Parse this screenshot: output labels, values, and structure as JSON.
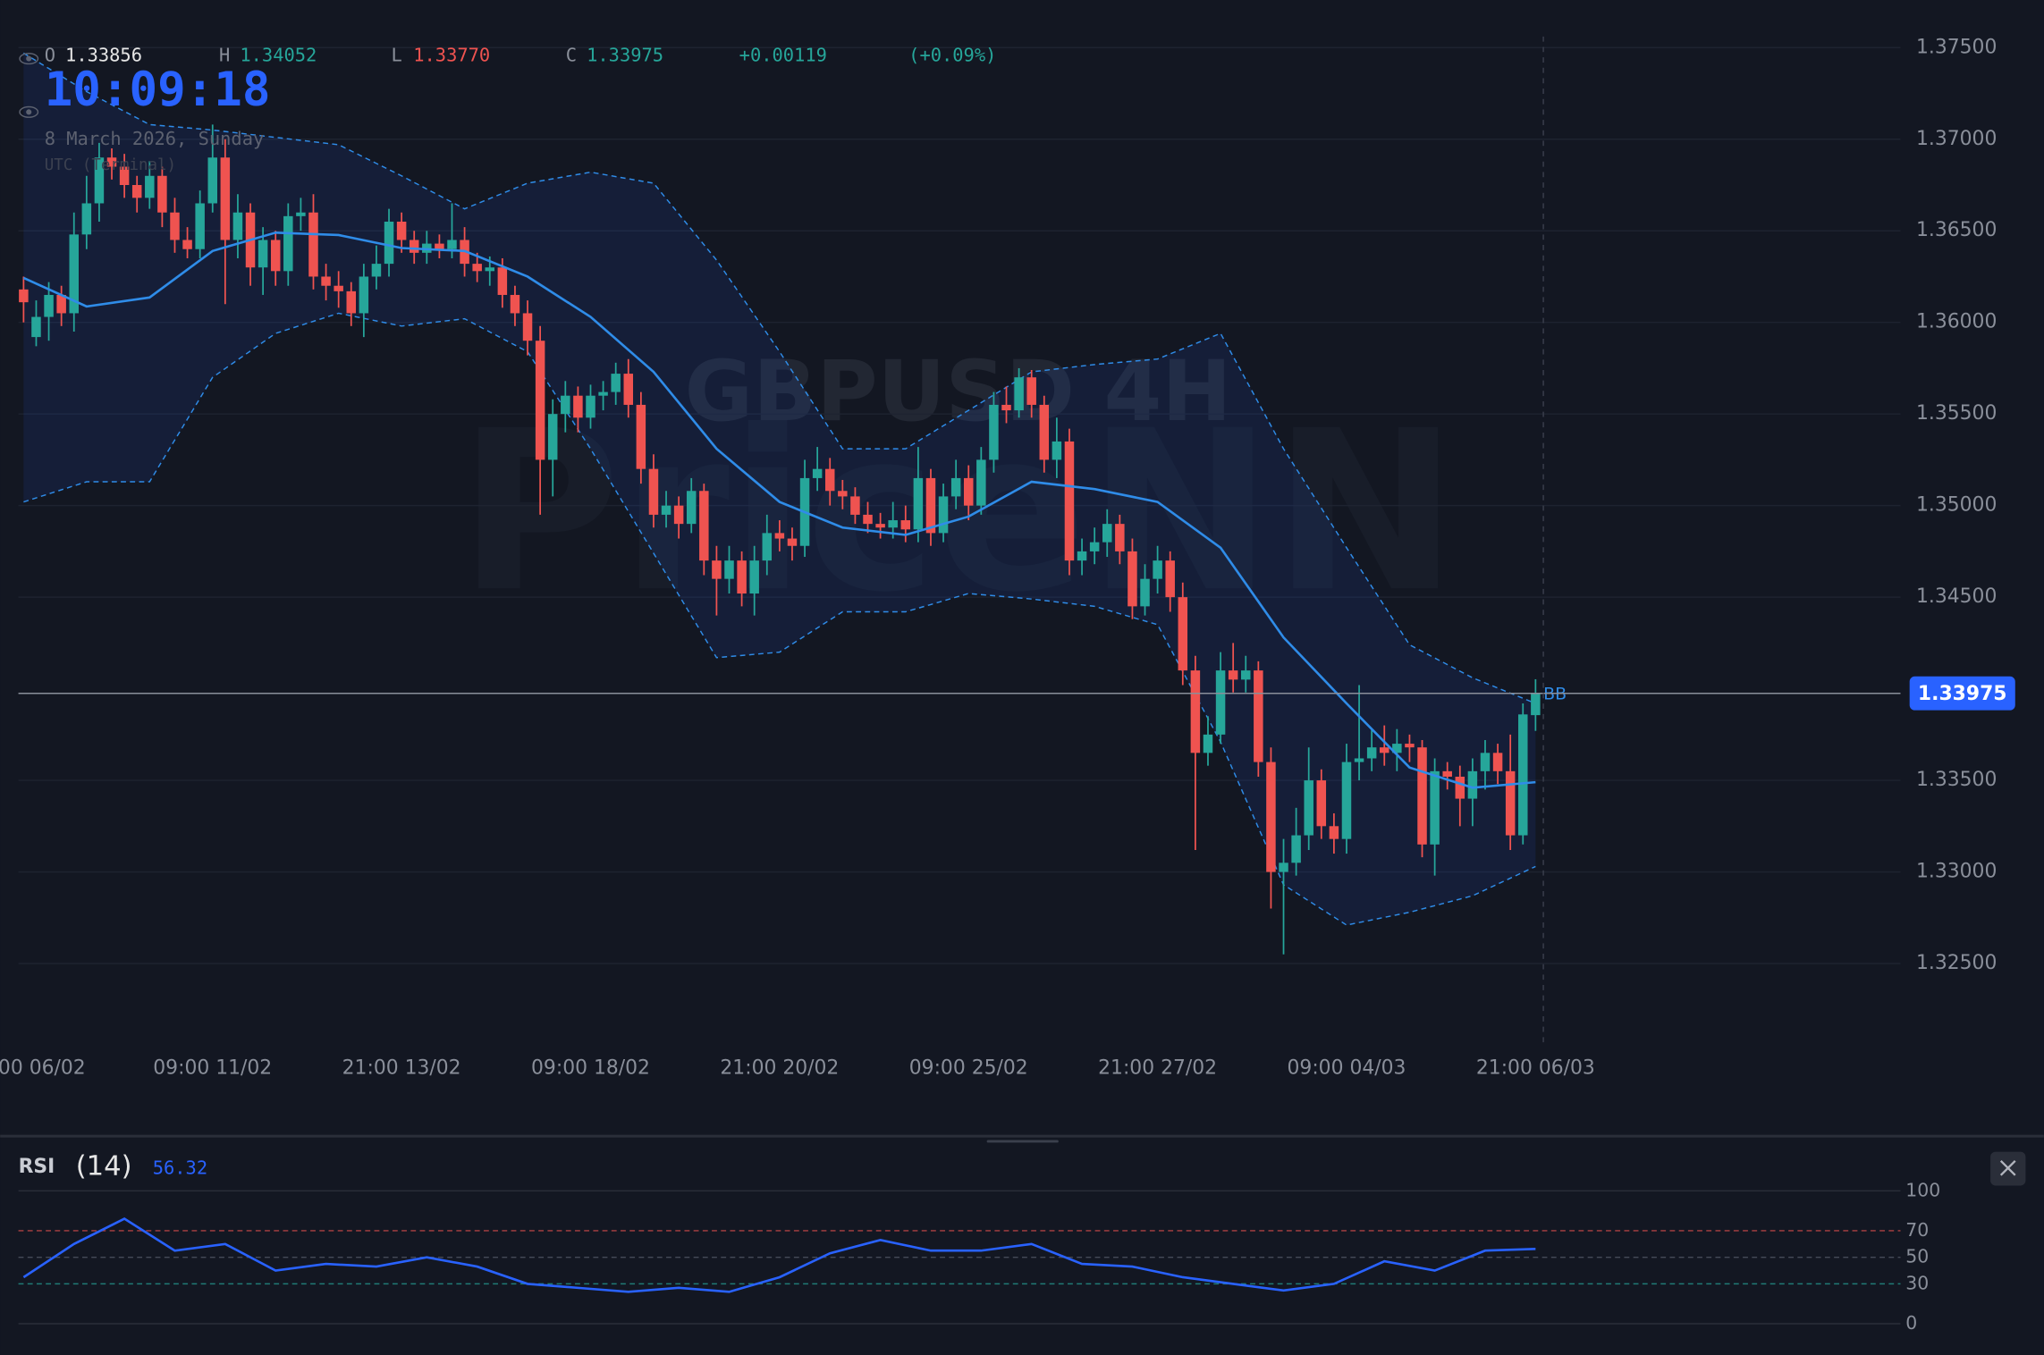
{
  "header": {
    "open_label": "O",
    "open": "1.33856",
    "high_label": "H",
    "high": "1.34052",
    "low_label": "L",
    "low": "1.33770",
    "close_label": "C",
    "change": "+0.00119",
    "change_pct": "(+0.09%)"
  },
  "clock": {
    "time": "10:09:18",
    "date": "8 March 2026, Sunday",
    "timezone": "UTC (Terminal)"
  },
  "watermark": {
    "symbol": "GBPUSD 4H",
    "brand": "PriceNN"
  },
  "chart_data": [
    {
      "type": "candlestick",
      "up_color": "#26a69a",
      "down_color": "#ef5350",
      "xlim": [
        -1.86,
        149.17
      ],
      "xticks": [
        {
          "value": 0,
          "label": "00 06/02"
        },
        {
          "value": 15,
          "label": "09:00 11/02"
        },
        {
          "value": 30,
          "label": "21:00 13/02"
        },
        {
          "value": 45,
          "label": "09:00 18/02"
        },
        {
          "value": 60,
          "label": "21:00 20/02"
        },
        {
          "value": 75,
          "label": "09:00 25/02"
        },
        {
          "value": 90,
          "label": "21:00 27/02"
        },
        {
          "value": 105,
          "label": "09:00 04/03"
        },
        {
          "value": 120,
          "label": "21:00 06/03"
        }
      ],
      "ylim": [
        1.3207,
        1.3776
      ],
      "yticks": [
        {
          "value": 1.375,
          "label": "1.37500"
        },
        {
          "value": 1.37,
          "label": "1.37000"
        },
        {
          "value": 1.365,
          "label": "1.36500"
        },
        {
          "value": 1.36,
          "label": "1.36000"
        },
        {
          "value": 1.355,
          "label": "1.35500"
        },
        {
          "value": 1.35,
          "label": "1.35000"
        },
        {
          "value": 1.345,
          "label": "1.34500"
        },
        {
          "value": 1.335,
          "label": "1.33500"
        },
        {
          "value": 1.33,
          "label": "1.33000"
        },
        {
          "value": 1.325,
          "label": "1.32500"
        }
      ],
      "grid": true,
      "last_price": {
        "value": 1.33975,
        "label": "1.33975"
      },
      "ohlc": [
        [
          1.3618,
          1.3625,
          1.36,
          1.3611
        ],
        [
          1.3592,
          1.3612,
          1.3587,
          1.3603
        ],
        [
          1.3603,
          1.3622,
          1.359,
          1.3615
        ],
        [
          1.3615,
          1.362,
          1.3598,
          1.3605
        ],
        [
          1.3605,
          1.366,
          1.3595,
          1.3648
        ],
        [
          1.3648,
          1.368,
          1.364,
          1.3665
        ],
        [
          1.3665,
          1.3698,
          1.3655,
          1.369
        ],
        [
          1.369,
          1.3695,
          1.3678,
          1.3685
        ],
        [
          1.3685,
          1.3692,
          1.3668,
          1.3675
        ],
        [
          1.3675,
          1.368,
          1.366,
          1.3668
        ],
        [
          1.3668,
          1.3688,
          1.3662,
          1.368
        ],
        [
          1.368,
          1.3685,
          1.3652,
          1.366
        ],
        [
          1.366,
          1.3668,
          1.3638,
          1.3645
        ],
        [
          1.3645,
          1.3652,
          1.3635,
          1.364
        ],
        [
          1.364,
          1.3672,
          1.3635,
          1.3665
        ],
        [
          1.3665,
          1.3708,
          1.366,
          1.369
        ],
        [
          1.369,
          1.37,
          1.361,
          1.3645
        ],
        [
          1.3645,
          1.367,
          1.3635,
          1.366
        ],
        [
          1.366,
          1.3665,
          1.362,
          1.363
        ],
        [
          1.363,
          1.3652,
          1.3615,
          1.3645
        ],
        [
          1.3645,
          1.365,
          1.362,
          1.3628
        ],
        [
          1.3628,
          1.3665,
          1.362,
          1.3658
        ],
        [
          1.3658,
          1.3668,
          1.365,
          1.366
        ],
        [
          1.366,
          1.367,
          1.3618,
          1.3625
        ],
        [
          1.3625,
          1.3632,
          1.3612,
          1.362
        ],
        [
          1.362,
          1.3628,
          1.3608,
          1.3617
        ],
        [
          1.3617,
          1.3622,
          1.3598,
          1.3605
        ],
        [
          1.3605,
          1.3632,
          1.3592,
          1.3625
        ],
        [
          1.3625,
          1.3642,
          1.3618,
          1.3632
        ],
        [
          1.3632,
          1.3662,
          1.3625,
          1.3655
        ],
        [
          1.3655,
          1.366,
          1.3638,
          1.3645
        ],
        [
          1.3645,
          1.365,
          1.3632,
          1.3638
        ],
        [
          1.3638,
          1.365,
          1.3632,
          1.3643
        ],
        [
          1.3643,
          1.3648,
          1.3635,
          1.364
        ],
        [
          1.364,
          1.3665,
          1.3635,
          1.3645
        ],
        [
          1.3645,
          1.3652,
          1.3625,
          1.3632
        ],
        [
          1.3632,
          1.3638,
          1.3622,
          1.3628
        ],
        [
          1.3628,
          1.3636,
          1.362,
          1.363
        ],
        [
          1.363,
          1.3635,
          1.3608,
          1.3615
        ],
        [
          1.3615,
          1.362,
          1.3598,
          1.3605
        ],
        [
          1.3605,
          1.3612,
          1.3582,
          1.359
        ],
        [
          1.359,
          1.3598,
          1.3495,
          1.3525
        ],
        [
          1.3525,
          1.3558,
          1.3505,
          1.355
        ],
        [
          1.355,
          1.3568,
          1.354,
          1.356
        ],
        [
          1.356,
          1.3565,
          1.354,
          1.3548
        ],
        [
          1.3548,
          1.3566,
          1.3542,
          1.356
        ],
        [
          1.356,
          1.3568,
          1.3552,
          1.3562
        ],
        [
          1.3562,
          1.3578,
          1.3555,
          1.3572
        ],
        [
          1.3572,
          1.358,
          1.3548,
          1.3555
        ],
        [
          1.3555,
          1.3562,
          1.3512,
          1.352
        ],
        [
          1.352,
          1.3528,
          1.3488,
          1.3495
        ],
        [
          1.3495,
          1.3508,
          1.3488,
          1.35
        ],
        [
          1.35,
          1.3505,
          1.3482,
          1.349
        ],
        [
          1.349,
          1.3515,
          1.3485,
          1.3508
        ],
        [
          1.3508,
          1.3512,
          1.3462,
          1.347
        ],
        [
          1.347,
          1.3478,
          1.344,
          1.346
        ],
        [
          1.346,
          1.3478,
          1.3452,
          1.347
        ],
        [
          1.347,
          1.3475,
          1.3445,
          1.3452
        ],
        [
          1.3452,
          1.3478,
          1.344,
          1.347
        ],
        [
          1.347,
          1.3495,
          1.3462,
          1.3485
        ],
        [
          1.3485,
          1.3492,
          1.3475,
          1.3482
        ],
        [
          1.3482,
          1.3488,
          1.347,
          1.3478
        ],
        [
          1.3478,
          1.3525,
          1.3472,
          1.3515
        ],
        [
          1.3515,
          1.3532,
          1.3508,
          1.352
        ],
        [
          1.352,
          1.3526,
          1.35,
          1.3508
        ],
        [
          1.3508,
          1.3514,
          1.3498,
          1.3505
        ],
        [
          1.3505,
          1.351,
          1.349,
          1.3495
        ],
        [
          1.3495,
          1.3502,
          1.3485,
          1.349
        ],
        [
          1.349,
          1.3496,
          1.3482,
          1.3488
        ],
        [
          1.3488,
          1.3502,
          1.3482,
          1.3492
        ],
        [
          1.3492,
          1.35,
          1.348,
          1.3487
        ],
        [
          1.3487,
          1.3532,
          1.348,
          1.3515
        ],
        [
          1.3515,
          1.352,
          1.3478,
          1.3485
        ],
        [
          1.3485,
          1.3512,
          1.348,
          1.3505
        ],
        [
          1.3505,
          1.3525,
          1.3498,
          1.3515
        ],
        [
          1.3515,
          1.3522,
          1.3492,
          1.35
        ],
        [
          1.35,
          1.3532,
          1.3495,
          1.3525
        ],
        [
          1.3525,
          1.3562,
          1.3518,
          1.3555
        ],
        [
          1.3555,
          1.3565,
          1.3545,
          1.3552
        ],
        [
          1.3552,
          1.3575,
          1.3548,
          1.357
        ],
        [
          1.357,
          1.3574,
          1.3548,
          1.3555
        ],
        [
          1.3555,
          1.356,
          1.3518,
          1.3525
        ],
        [
          1.3525,
          1.3548,
          1.3515,
          1.3535
        ],
        [
          1.3535,
          1.3542,
          1.3462,
          1.347
        ],
        [
          1.347,
          1.3482,
          1.3462,
          1.3475
        ],
        [
          1.3475,
          1.3488,
          1.3468,
          1.348
        ],
        [
          1.348,
          1.3498,
          1.3472,
          1.349
        ],
        [
          1.349,
          1.3495,
          1.3468,
          1.3475
        ],
        [
          1.3475,
          1.3482,
          1.3438,
          1.3445
        ],
        [
          1.3445,
          1.3468,
          1.344,
          1.346
        ],
        [
          1.346,
          1.3478,
          1.3452,
          1.347
        ],
        [
          1.347,
          1.3475,
          1.3442,
          1.345
        ],
        [
          1.345,
          1.3458,
          1.3402,
          1.341
        ],
        [
          1.341,
          1.3418,
          1.3312,
          1.3365
        ],
        [
          1.3365,
          1.3385,
          1.3358,
          1.3375
        ],
        [
          1.3375,
          1.342,
          1.337,
          1.341
        ],
        [
          1.341,
          1.3425,
          1.3398,
          1.3405
        ],
        [
          1.3405,
          1.3418,
          1.3398,
          1.341
        ],
        [
          1.341,
          1.3415,
          1.3352,
          1.336
        ],
        [
          1.336,
          1.3368,
          1.328,
          1.33
        ],
        [
          1.33,
          1.3318,
          1.3255,
          1.3305
        ],
        [
          1.3305,
          1.3335,
          1.3298,
          1.332
        ],
        [
          1.332,
          1.3368,
          1.3312,
          1.335
        ],
        [
          1.335,
          1.3356,
          1.3318,
          1.3325
        ],
        [
          1.3325,
          1.3332,
          1.331,
          1.3318
        ],
        [
          1.3318,
          1.337,
          1.331,
          1.336
        ],
        [
          1.336,
          1.3402,
          1.335,
          1.3362
        ],
        [
          1.3362,
          1.3378,
          1.3355,
          1.3368
        ],
        [
          1.3368,
          1.338,
          1.3358,
          1.3365
        ],
        [
          1.3365,
          1.3378,
          1.3355,
          1.337
        ],
        [
          1.337,
          1.3375,
          1.336,
          1.3368
        ],
        [
          1.3368,
          1.3372,
          1.3308,
          1.3315
        ],
        [
          1.3315,
          1.3362,
          1.3298,
          1.3355
        ],
        [
          1.3355,
          1.336,
          1.3345,
          1.3352
        ],
        [
          1.3352,
          1.3358,
          1.3325,
          1.334
        ],
        [
          1.334,
          1.3362,
          1.3325,
          1.3355
        ],
        [
          1.3355,
          1.3372,
          1.3345,
          1.3365
        ],
        [
          1.3365,
          1.337,
          1.3348,
          1.3355
        ],
        [
          1.3355,
          1.3375,
          1.3312,
          1.332
        ],
        [
          1.332,
          1.3392,
          1.3315,
          1.3386
        ],
        [
          1.33856,
          1.34052,
          1.3377,
          1.33975
        ]
      ],
      "bb": {
        "name": "BB",
        "color": "#2f8ce8",
        "band_color": "#2962ff",
        "x": [
          0,
          5,
          10,
          15,
          20,
          25,
          30,
          35,
          40,
          45,
          50,
          55,
          60,
          65,
          70,
          75,
          80,
          85,
          90,
          95,
          100,
          105,
          110,
          115,
          120
        ],
        "basis": [
          1.36243,
          1.36087,
          1.36136,
          1.3639,
          1.3649,
          1.36477,
          1.36406,
          1.3639,
          1.3625,
          1.3603,
          1.3573,
          1.3531,
          1.3502,
          1.3488,
          1.3484,
          1.3494,
          1.3513,
          1.3509,
          1.3502,
          1.3477,
          1.3428,
          1.3392,
          1.3357,
          1.3346,
          1.3349
        ],
        "upper": [
          1.3747,
          1.3726,
          1.3708,
          1.3705,
          1.3701,
          1.3697,
          1.368,
          1.3662,
          1.3676,
          1.3682,
          1.3676,
          1.3634,
          1.3584,
          1.3531,
          1.3531,
          1.3552,
          1.3573,
          1.3577,
          1.358,
          1.3594,
          1.3531,
          1.3477,
          1.3424,
          1.3406,
          1.3392
        ],
        "lower": [
          1.3502,
          1.3513,
          1.3513,
          1.357,
          1.3594,
          1.3605,
          1.3598,
          1.3602,
          1.3584,
          1.3531,
          1.3474,
          1.3417,
          1.342,
          1.3442,
          1.3442,
          1.3452,
          1.3449,
          1.3445,
          1.3435,
          1.3371,
          1.3293,
          1.3271,
          1.3278,
          1.3287,
          1.3303
        ]
      }
    },
    {
      "type": "line",
      "title": "RSI",
      "subtitle": "(14)",
      "color": "#2962ff",
      "xlim": [
        -1.86,
        149.17
      ],
      "ylim": [
        0,
        100
      ],
      "yticks": [
        100,
        70,
        50,
        30,
        0
      ],
      "x": [
        0,
        4,
        8,
        12,
        16,
        20,
        24,
        28,
        32,
        36,
        40,
        44,
        48,
        52,
        56,
        60,
        64,
        68,
        72,
        76,
        80,
        84,
        88,
        92,
        96,
        100,
        104,
        108,
        112,
        116,
        120
      ],
      "values": [
        35,
        60,
        79,
        55,
        60,
        40,
        45,
        43,
        50,
        43,
        30,
        27,
        24,
        27,
        24,
        35,
        53,
        63,
        55,
        55,
        60,
        45,
        43,
        35,
        30,
        25,
        30,
        47,
        40,
        55,
        56.32
      ]
    }
  ]
}
